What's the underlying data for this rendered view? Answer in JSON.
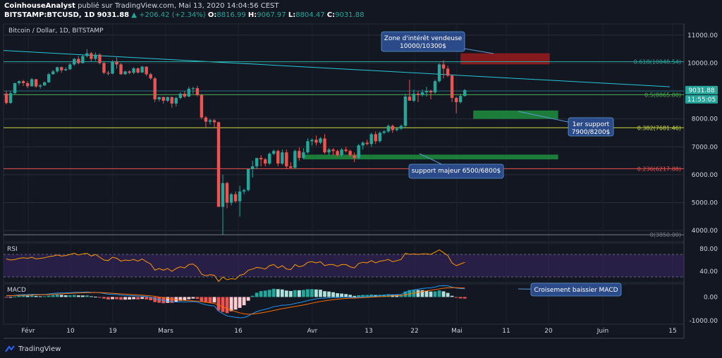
{
  "header": {
    "author": "CoinhouseAnalyst",
    "published": "publié sur TradingView.com, Mai 13, 2020 14:04:56 CEST",
    "symbol": "BITSTAMP:BTCUSD, 1D",
    "price": "9031.88",
    "change": "▲ +206.42 (+2.34%)",
    "open_label": "O:",
    "open": "8816.99",
    "high_label": "H:",
    "high": "9067.97",
    "low_label": "L:",
    "low": "8804.47",
    "close_label": "C:",
    "close": "9031.88"
  },
  "colors": {
    "bg": "#131722",
    "up": "#26a69a",
    "down": "#ef5350",
    "text": "#d1d4dc",
    "grid": "#2a2e39",
    "callout": "#2962ff"
  },
  "footer": {
    "brand": "TradingView"
  },
  "chart_data": {
    "type": "candlestick",
    "title": "Bitcoin / Dollar, 1D, BITSTAMP",
    "ylim": [
      3600,
      11400
    ],
    "y_ticks": [
      4000,
      5000,
      6000,
      7000,
      8000,
      9000,
      10000,
      11000
    ],
    "x_tick_labels": [
      "Févr",
      "10",
      "19",
      "Mars",
      "16",
      "Avr",
      "13",
      "22",
      "Mai",
      "11",
      "20",
      "Juin",
      "15"
    ],
    "current_price": {
      "value": "9031.88",
      "countdown": "11:55:05"
    },
    "candles": [
      [
        8905,
        9000,
        8520,
        8570
      ],
      [
        8570,
        9000,
        8540,
        8920
      ],
      [
        8920,
        9300,
        8880,
        9280
      ],
      [
        9280,
        9380,
        9200,
        9350
      ],
      [
        9350,
        9400,
        9180,
        9280
      ],
      [
        9280,
        9350,
        9100,
        9170
      ],
      [
        9170,
        9470,
        9150,
        9420
      ],
      [
        9420,
        9430,
        9120,
        9160
      ],
      [
        9160,
        9250,
        9080,
        9200
      ],
      [
        9200,
        9340,
        9180,
        9310
      ],
      [
        9310,
        9650,
        9290,
        9600
      ],
      [
        9600,
        9760,
        9580,
        9700
      ],
      [
        9700,
        9870,
        9650,
        9850
      ],
      [
        9850,
        9880,
        9650,
        9740
      ],
      [
        9740,
        9850,
        9720,
        9780
      ],
      [
        9780,
        10000,
        9750,
        9950
      ],
      [
        9950,
        10180,
        9900,
        10150
      ],
      [
        10150,
        10250,
        9950,
        10000
      ],
      [
        10000,
        10300,
        9980,
        10250
      ],
      [
        10250,
        10500,
        10200,
        10350
      ],
      [
        10350,
        10400,
        10050,
        10150
      ],
      [
        10150,
        10380,
        10080,
        10300
      ],
      [
        10300,
        10350,
        9950,
        10000
      ],
      [
        10000,
        10050,
        9600,
        9650
      ],
      [
        9650,
        9720,
        9560,
        9620
      ],
      [
        9620,
        10100,
        9600,
        10050
      ],
      [
        10050,
        10200,
        9800,
        9950
      ],
      [
        9950,
        10000,
        9580,
        9600
      ],
      [
        9600,
        9720,
        9580,
        9700
      ],
      [
        9700,
        9740,
        9600,
        9650
      ],
      [
        9650,
        9850,
        9600,
        9810
      ],
      [
        9810,
        9840,
        9620,
        9660
      ],
      [
        9660,
        9900,
        9650,
        9870
      ],
      [
        9870,
        9880,
        9540,
        9600
      ],
      [
        9600,
        9650,
        9400,
        9450
      ],
      [
        9450,
        9500,
        8600,
        8700
      ],
      [
        8700,
        8800,
        8620,
        8780
      ],
      [
        8780,
        8800,
        8550,
        8650
      ],
      [
        8650,
        8800,
        8600,
        8780
      ],
      [
        8780,
        8800,
        8400,
        8550
      ],
      [
        8550,
        8800,
        8450,
        8750
      ],
      [
        8750,
        8950,
        8700,
        8900
      ],
      [
        8900,
        9000,
        8750,
        8800
      ],
      [
        8800,
        9150,
        8780,
        9080
      ],
      [
        9080,
        9150,
        8900,
        9100
      ],
      [
        9100,
        9180,
        8800,
        8850
      ],
      [
        8850,
        8900,
        8000,
        8050
      ],
      [
        8050,
        8100,
        7700,
        7900
      ],
      [
        7900,
        8000,
        7800,
        7950
      ],
      [
        7950,
        8000,
        7700,
        7880
      ],
      [
        7880,
        7900,
        4900,
        4850
      ],
      [
        4850,
        6000,
        3850,
        5700
      ],
      [
        5700,
        5750,
        4800,
        5000
      ],
      [
        5000,
        5350,
        4900,
        5300
      ],
      [
        5300,
        5400,
        5000,
        5050
      ],
      [
        5050,
        5600,
        4500,
        5400
      ],
      [
        5400,
        5500,
        5300,
        5450
      ],
      [
        5450,
        6200,
        5400,
        6200
      ],
      [
        6200,
        6500,
        5900,
        6300
      ],
      [
        6300,
        6600,
        6200,
        6600
      ],
      [
        6600,
        6700,
        6300,
        6550
      ],
      [
        6550,
        6600,
        6300,
        6400
      ],
      [
        6400,
        6800,
        6350,
        6750
      ],
      [
        6750,
        6900,
        6700,
        6850
      ],
      [
        6850,
        6900,
        6300,
        6400
      ],
      [
        6400,
        6900,
        6350,
        6800
      ],
      [
        6800,
        6900,
        6200,
        6300
      ],
      [
        6300,
        6450,
        6200,
        6250
      ],
      [
        6250,
        6900,
        6200,
        6850
      ],
      [
        6850,
        6980,
        6500,
        6600
      ],
      [
        6600,
        6950,
        6550,
        6800
      ],
      [
        6800,
        7300,
        6750,
        7200
      ],
      [
        7200,
        7300,
        7050,
        7250
      ],
      [
        7250,
        7400,
        7050,
        7150
      ],
      [
        7150,
        7350,
        7100,
        7300
      ],
      [
        7300,
        7450,
        6750,
        6800
      ],
      [
        6800,
        6950,
        6700,
        6900
      ],
      [
        6900,
        6950,
        6700,
        6850
      ],
      [
        6850,
        6900,
        6650,
        6700
      ],
      [
        6700,
        6950,
        6650,
        6900
      ],
      [
        6900,
        7000,
        6800,
        6850
      ],
      [
        6850,
        6900,
        6650,
        6700
      ],
      [
        6700,
        6800,
        6450,
        6600
      ],
      [
        6600,
        7100,
        6550,
        7050
      ],
      [
        7050,
        7200,
        6900,
        7150
      ],
      [
        7150,
        7250,
        7050,
        7100
      ],
      [
        7100,
        7500,
        7000,
        7450
      ],
      [
        7450,
        7550,
        7100,
        7200
      ],
      [
        7200,
        7550,
        7150,
        7500
      ],
      [
        7500,
        7600,
        7450,
        7550
      ],
      [
        7550,
        7800,
        7500,
        7750
      ],
      [
        7750,
        7800,
        7500,
        7600
      ],
      [
        7600,
        7700,
        7550,
        7650
      ],
      [
        7650,
        7800,
        7600,
        7750
      ],
      [
        7750,
        8900,
        7700,
        8800
      ],
      [
        8800,
        9400,
        8700,
        8650
      ],
      [
        8650,
        9050,
        8600,
        8900
      ],
      [
        8900,
        9000,
        8600,
        8850
      ],
      [
        8850,
        9050,
        8800,
        8950
      ],
      [
        8950,
        9150,
        8800,
        9000
      ],
      [
        9000,
        9050,
        8700,
        8950
      ],
      [
        8950,
        9400,
        8900,
        9350
      ],
      [
        9350,
        10000,
        9300,
        9950
      ],
      [
        9950,
        10100,
        9450,
        9800
      ],
      [
        9800,
        9900,
        9500,
        9550
      ],
      [
        9550,
        9600,
        8600,
        8750
      ],
      [
        8750,
        8800,
        8200,
        8600
      ],
      [
        8600,
        8900,
        8550,
        8820
      ],
      [
        8817,
        9068,
        8804,
        9032
      ]
    ],
    "rsi": {
      "label": "RSI",
      "ylim": [
        20,
        90
      ],
      "ticks": [
        40,
        80
      ],
      "values": [
        62,
        60,
        61,
        63,
        64,
        63,
        65,
        62,
        63,
        64,
        66,
        67,
        69,
        67,
        68,
        70,
        72,
        69,
        71,
        72,
        67,
        70,
        65,
        60,
        59,
        65,
        63,
        58,
        60,
        59,
        61,
        58,
        62,
        57,
        53,
        42,
        45,
        42,
        45,
        40,
        45,
        48,
        46,
        52,
        53,
        47,
        35,
        32,
        34,
        33,
        22,
        30,
        25,
        27,
        26,
        33,
        35,
        42,
        44,
        47,
        46,
        44,
        50,
        52,
        46,
        50,
        44,
        43,
        52,
        48,
        50,
        56,
        57,
        55,
        57,
        50,
        52,
        52,
        49,
        52,
        52,
        48,
        46,
        54,
        56,
        55,
        59,
        55,
        58,
        59,
        61,
        57,
        59,
        61,
        72,
        70,
        71,
        70,
        71,
        71,
        70,
        74,
        78,
        73,
        68,
        55,
        50,
        53,
        56
      ]
    },
    "macd": {
      "label": "MACD",
      "ylim": [
        -1150,
        550
      ],
      "ticks": [
        0,
        -1000
      ],
      "values": [
        50,
        52,
        70,
        90,
        100,
        102,
        115,
        110,
        108,
        112,
        130,
        150,
        170,
        175,
        175,
        185,
        200,
        200,
        205,
        215,
        200,
        195,
        180,
        150,
        120,
        115,
        105,
        80,
        70,
        60,
        55,
        40,
        40,
        20,
        -10,
        -70,
        -110,
        -150,
        -170,
        -200,
        -210,
        -200,
        -210,
        -200,
        -195,
        -210,
        -280,
        -330,
        -360,
        -380,
        -600,
        -700,
        -800,
        -830,
        -860,
        -880,
        -870,
        -800,
        -700,
        -620,
        -560,
        -520,
        -470,
        -410,
        -380,
        -350,
        -340,
        -320,
        -270,
        -240,
        -200,
        -150,
        -110,
        -80,
        -50,
        -50,
        -30,
        -20,
        -20,
        -10,
        -5,
        -10,
        -25,
        -5,
        10,
        20,
        40,
        40,
        55,
        70,
        90,
        95,
        100,
        110,
        200,
        260,
        300,
        330,
        360,
        380,
        390,
        420,
        470,
        480,
        470,
        420,
        380,
        360,
        350
      ],
      "signal": [
        60,
        60,
        62,
        66,
        72,
        78,
        85,
        90,
        94,
        98,
        104,
        113,
        124,
        134,
        142,
        151,
        161,
        169,
        176,
        184,
        187,
        189,
        187,
        180,
        168,
        157,
        147,
        133,
        121,
        109,
        98,
        87,
        77,
        66,
        51,
        27,
        0,
        -30,
        -58,
        -87,
        -111,
        -128,
        -145,
        -156,
        -164,
        -173,
        -194,
        -221,
        -249,
        -275,
        -340,
        -412,
        -490,
        -558,
        -618,
        -671,
        -711,
        -729,
        -723,
        -702,
        -674,
        -643,
        -608,
        -569,
        -531,
        -495,
        -464,
        -435,
        -402,
        -370,
        -336,
        -299,
        -261,
        -225,
        -190,
        -162,
        -135,
        -112,
        -93,
        -76,
        -62,
        -52,
        -47,
        -39,
        -29,
        -19,
        -7,
        2,
        13,
        24,
        37,
        49,
        59,
        69,
        95,
        128,
        162,
        196,
        229,
        259,
        285,
        312,
        343,
        371,
        391,
        397,
        394,
        387,
        380
      ]
    },
    "fib_levels": [
      {
        "label": "0.618(10048.54)",
        "value": 10048.54,
        "color": "#26a69a"
      },
      {
        "label": "0.5(8865.00)",
        "value": 8865,
        "color": "#4caf50"
      },
      {
        "label": "0.382(7681.46)",
        "value": 7681.46,
        "color": "#cddc39"
      },
      {
        "label": "0.236(6217.08)",
        "value": 6217.08,
        "color": "#ef5350"
      },
      {
        "label": "0(3850.00)",
        "value": 3850,
        "color": "#787b86"
      }
    ],
    "zones": [
      {
        "name": "resistance",
        "from": 9950,
        "to": 10350,
        "start": 107,
        "end": 128,
        "color": "#b71c1c"
      },
      {
        "name": "support-1",
        "from": 8000,
        "to": 8300,
        "start": 110,
        "end": 130,
        "color": "#1e8e3e"
      },
      {
        "name": "support-major",
        "from": 6550,
        "to": 6720,
        "start": 70,
        "end": 130,
        "color": "#1e8e3e"
      }
    ],
    "annotations": [
      {
        "text": "Zone d'intérêt vendeuse 10000/10300$"
      },
      {
        "text": "1er support 7900/8200$"
      },
      {
        "text": "support majeur 6500/6800$"
      },
      {
        "text": "Croisement baissier MACD"
      }
    ]
  }
}
